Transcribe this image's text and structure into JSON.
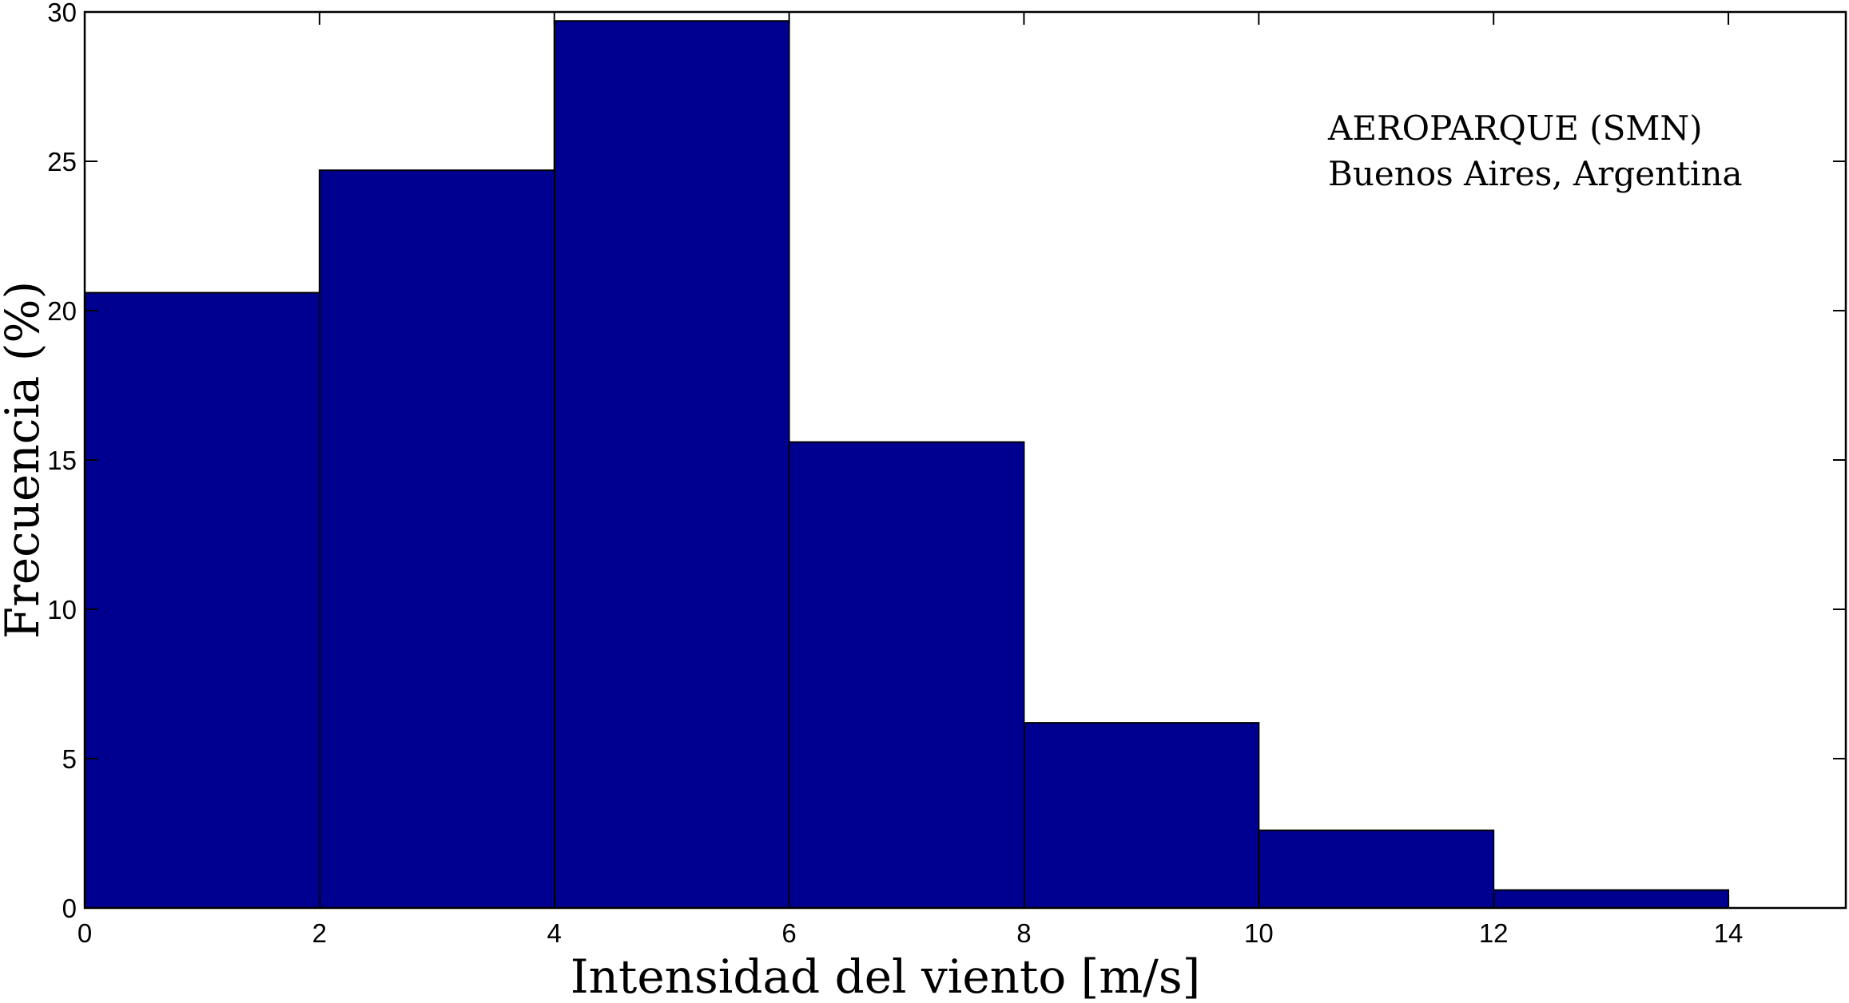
{
  "chart_data": {
    "type": "bar",
    "subtype": "histogram",
    "bin_edges": [
      0,
      2,
      4,
      6,
      8,
      10,
      12,
      14
    ],
    "values": [
      20.6,
      24.7,
      29.7,
      15.6,
      6.2,
      2.6,
      0.6
    ],
    "title": "",
    "xlabel": "Intensidad del viento [m/s]",
    "ylabel": "Frecuencia (%)",
    "xlim": [
      0,
      15
    ],
    "ylim": [
      0,
      30
    ],
    "xticks": [
      0,
      2,
      4,
      6,
      8,
      10,
      12,
      14
    ],
    "yticks": [
      0,
      5,
      10,
      15,
      20,
      25,
      30
    ],
    "grid": false,
    "annotation": [
      "AEROPARQUE (SMN)",
      "Buenos Aires, Argentina"
    ],
    "annotation_placement": "top-right",
    "colors": {
      "bar_fill": "#000090",
      "bar_edge": "#000000"
    }
  }
}
